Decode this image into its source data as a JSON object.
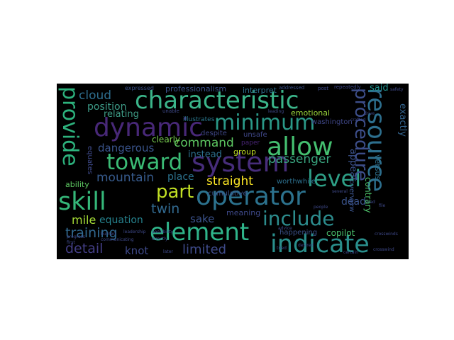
{
  "word_cloud": {
    "background": "#000000",
    "words": [
      {
        "text": "characteristic",
        "color": "#3bb58a"
      },
      {
        "text": "dynamic",
        "color": "#482878"
      },
      {
        "text": "system",
        "color": "#472d7b"
      },
      {
        "text": "operator",
        "color": "#2c728e"
      },
      {
        "text": "indicate",
        "color": "#2a8f8c"
      },
      {
        "text": "element",
        "color": "#2fb48a"
      },
      {
        "text": "resource",
        "color": "#2d6f8e"
      },
      {
        "text": "procedure",
        "color": "#3d4e8a"
      },
      {
        "text": "provide",
        "color": "#2db27d"
      },
      {
        "text": "allow",
        "color": "#44bf70"
      },
      {
        "text": "toward",
        "color": "#3bbb75"
      },
      {
        "text": "minimum",
        "color": "#2a9988"
      },
      {
        "text": "skill",
        "color": "#35b779"
      },
      {
        "text": "level",
        "color": "#2e9f86"
      },
      {
        "text": "part",
        "color": "#c1df24"
      },
      {
        "text": "include",
        "color": "#2c8c8d"
      },
      {
        "text": "training",
        "color": "#31688e"
      },
      {
        "text": "detail",
        "color": "#433e85"
      },
      {
        "text": "limited",
        "color": "#3e4a89"
      },
      {
        "text": "cloud",
        "color": "#2e6e8e"
      },
      {
        "text": "position",
        "color": "#3d9b87"
      },
      {
        "text": "relating",
        "color": "#3e9b85"
      },
      {
        "text": "dangerous",
        "color": "#3a548c"
      },
      {
        "text": "command",
        "color": "#5ec962"
      },
      {
        "text": "passenger",
        "color": "#38a37e"
      },
      {
        "text": "straight",
        "color": "#fde725"
      },
      {
        "text": "mountain",
        "color": "#375b8d"
      },
      {
        "text": "twin",
        "color": "#31688e"
      },
      {
        "text": "mile",
        "color": "#a5db36"
      },
      {
        "text": "equation",
        "color": "#26828e"
      },
      {
        "text": "sake",
        "color": "#3b528b"
      },
      {
        "text": "dead",
        "color": "#3a538b"
      },
      {
        "text": "knot",
        "color": "#3e4989"
      },
      {
        "text": "professionalism",
        "color": "#3b528b"
      },
      {
        "text": "interpret",
        "color": "#2e6f8e"
      },
      {
        "text": "said",
        "color": "#21918c"
      },
      {
        "text": "emotional",
        "color": "#9dd93b"
      },
      {
        "text": "exactly",
        "color": "#33638d"
      },
      {
        "text": "versus",
        "color": "#2d708e"
      },
      {
        "text": "contrary",
        "color": "#4ec36b"
      },
      {
        "text": "overview",
        "color": "#3a538b"
      },
      {
        "text": "appear",
        "color": "#3b528b"
      },
      {
        "text": "clearly",
        "color": "#7ad151"
      },
      {
        "text": "instead",
        "color": "#2d708e"
      },
      {
        "text": "despite",
        "color": "#3f4788"
      },
      {
        "text": "unsafe",
        "color": "#3f4788"
      },
      {
        "text": "group",
        "color": "#c2df23"
      },
      {
        "text": "paper",
        "color": "#482475"
      },
      {
        "text": "washington",
        "color": "#3f4788"
      },
      {
        "text": "worthwhile",
        "color": "#2d708e"
      },
      {
        "text": "cumulative",
        "color": "#3b528b"
      },
      {
        "text": "place",
        "color": "#2c728e"
      },
      {
        "text": "meaning",
        "color": "#3e4989"
      },
      {
        "text": "happening",
        "color": "#3b528b"
      },
      {
        "text": "copilot",
        "color": "#4ac16d"
      },
      {
        "text": "ability",
        "color": "#5ec962"
      },
      {
        "text": "illustrates",
        "color": "#2a788e"
      },
      {
        "text": "expressed",
        "color": "#3b528b"
      },
      {
        "text": "repeatedly",
        "color": "#3e4989"
      },
      {
        "text": "addressed",
        "color": "#3b528b"
      },
      {
        "text": "post",
        "color": "#3e4989"
      },
      {
        "text": "equates",
        "color": "#3e4989"
      },
      {
        "text": "unable",
        "color": "#3e4989"
      },
      {
        "text": "leading",
        "color": "#3e4989"
      },
      {
        "text": "advice",
        "color": "#3e4989"
      },
      {
        "text": "several",
        "color": "#3e4989"
      },
      {
        "text": "desired",
        "color": "#3e4989"
      },
      {
        "text": "tried",
        "color": "#3e4989"
      },
      {
        "text": "burned",
        "color": "#3e4989"
      },
      {
        "text": "leadership",
        "color": "#3e4989"
      },
      {
        "text": "communicating",
        "color": "#3e4989"
      },
      {
        "text": "possibility",
        "color": "#3e4989"
      },
      {
        "text": "directly",
        "color": "#3e4989"
      },
      {
        "text": "later",
        "color": "#3e4989"
      },
      {
        "text": "people",
        "color": "#3e4989"
      },
      {
        "text": "first",
        "color": "#3e4989"
      },
      {
        "text": "progress",
        "color": "#3e4989"
      },
      {
        "text": "crosswinds",
        "color": "#3e4989"
      },
      {
        "text": "drive",
        "color": "#3e4989"
      },
      {
        "text": "crafted",
        "color": "#3e4989"
      },
      {
        "text": "crosswind",
        "color": "#3e4989"
      },
      {
        "text": "lead",
        "color": "#3e4989"
      },
      {
        "text": "file",
        "color": "#3e4989"
      },
      {
        "text": "safety",
        "color": "#3e4989"
      },
      {
        "text": "certain",
        "color": "#3e4989"
      }
    ]
  }
}
